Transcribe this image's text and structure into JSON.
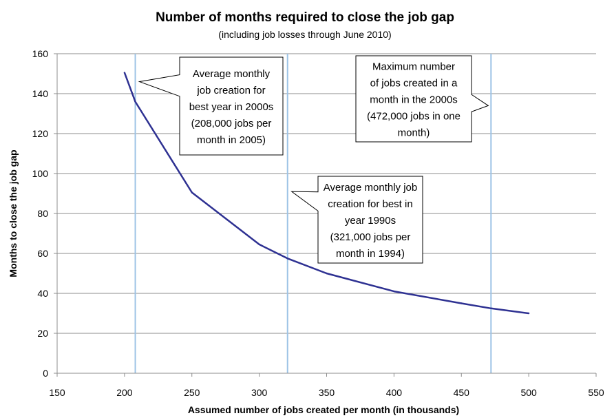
{
  "chart_data": {
    "type": "line",
    "title": "Number of months required to close the job gap",
    "subtitle": "(including job losses through June  2010)",
    "xlabel": "Assumed number of jobs created per month (in thousands)",
    "ylabel": "Months  to close the job gap",
    "xlim": [
      150,
      550
    ],
    "ylim": [
      0,
      160
    ],
    "xticks": [
      150,
      200,
      250,
      300,
      350,
      400,
      450,
      500,
      550
    ],
    "yticks": [
      0,
      20,
      40,
      60,
      80,
      100,
      120,
      140,
      160
    ],
    "grid": "horizontal",
    "legend": "none",
    "series": [
      {
        "color": "#2e3192",
        "x": [
          200,
          208,
          250,
          300,
          321,
          350,
          400,
          450,
          472,
          500
        ],
        "y": [
          150.5,
          136,
          90.5,
          64.5,
          57.5,
          50,
          41,
          35,
          32.5,
          30
        ]
      }
    ],
    "reference_lines": [
      {
        "x": 208,
        "color": "#9dc3e6"
      },
      {
        "x": 321,
        "color": "#9dc3e6"
      },
      {
        "x": 472,
        "color": "#9dc3e6"
      }
    ],
    "annotations": [
      {
        "lines": [
          "Average monthly",
          "job creation for",
          "best year in 2000s",
          "(208,000 jobs per",
          "month in 2005)"
        ],
        "target": [
          208,
          146
        ]
      },
      {
        "lines": [
          "Average monthly job",
          "creation for best in",
          "year 1990s",
          "(321,000 jobs per",
          "month in 1994)"
        ],
        "target": [
          321,
          91
        ]
      },
      {
        "lines": [
          "Maximum number",
          "of jobs created in a",
          "month in the 2000s",
          "(472,000 jobs in one",
          "month)"
        ],
        "target": [
          472,
          134
        ]
      }
    ]
  }
}
